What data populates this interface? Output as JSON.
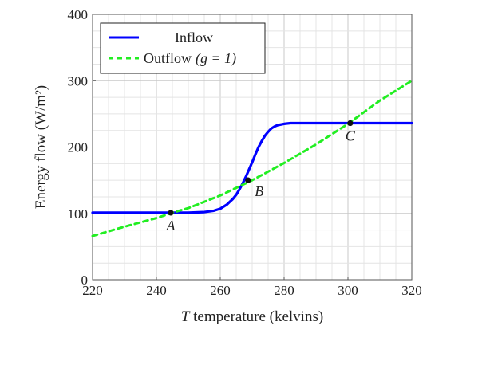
{
  "chart_data": {
    "type": "line",
    "xlabel_italic": "T",
    "xlabel_rest": " temperature (kelvins)",
    "ylabel": "Energy flow (W/m²)",
    "xlim": [
      220,
      320
    ],
    "ylim": [
      0,
      400
    ],
    "x_ticks": [
      220,
      240,
      260,
      280,
      300,
      320
    ],
    "y_ticks": [
      0,
      100,
      200,
      300,
      400
    ],
    "minor_x_step": 5,
    "minor_y_step": 25,
    "grid": true,
    "legend_position": "top-left",
    "series": [
      {
        "name": "Inflow",
        "style": "solid",
        "color": "#0000ff",
        "x": [
          220,
          240,
          250,
          255,
          258,
          260,
          262,
          264,
          265,
          266,
          267,
          268,
          269,
          270,
          271,
          272,
          273,
          274,
          275,
          276,
          277,
          278,
          280,
          282,
          285,
          290,
          300,
          320
        ],
        "y": [
          101,
          101,
          101,
          102,
          104,
          107,
          113,
          122,
          128,
          136,
          145,
          155,
          166,
          177,
          189,
          200,
          209,
          217,
          223,
          228,
          231,
          233,
          235,
          236,
          236,
          236,
          236,
          236
        ]
      },
      {
        "name": "Outflow",
        "name_math": "(g = 1)",
        "style": "dashed",
        "color": "#22ee22",
        "x": [
          220,
          230,
          240,
          245,
          250,
          260,
          270,
          280,
          290,
          300,
          310,
          320
        ],
        "y": [
          66,
          80,
          93,
          101,
          108,
          127,
          150,
          176,
          204,
          235,
          270,
          300
        ]
      }
    ],
    "points": [
      {
        "label": "A",
        "x": 244.5,
        "y": 101,
        "label_pos": "below"
      },
      {
        "label": "B",
        "x": 268.7,
        "y": 150,
        "label_pos": "below-right"
      },
      {
        "label": "C",
        "x": 300.7,
        "y": 236,
        "label_pos": "below"
      }
    ]
  }
}
